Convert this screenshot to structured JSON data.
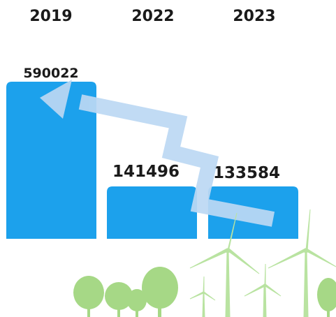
{
  "chart_data": {
    "type": "bar",
    "categories": [
      "2019",
      "2022",
      "2023"
    ],
    "values": [
      590022,
      141496,
      133584
    ],
    "title": "",
    "xlabel": "",
    "ylabel": "",
    "ylim": [
      0,
      590022
    ],
    "legend": "none",
    "grid": false,
    "colors": {
      "bar": "#1ca1ec",
      "arrow": "#bcd8f3",
      "tree": "#a6d886",
      "turbine": "#b9e3a1"
    },
    "decorations": [
      "down-trend-arrow-icon",
      "tree-icon",
      "wind-turbine-icon"
    ]
  }
}
